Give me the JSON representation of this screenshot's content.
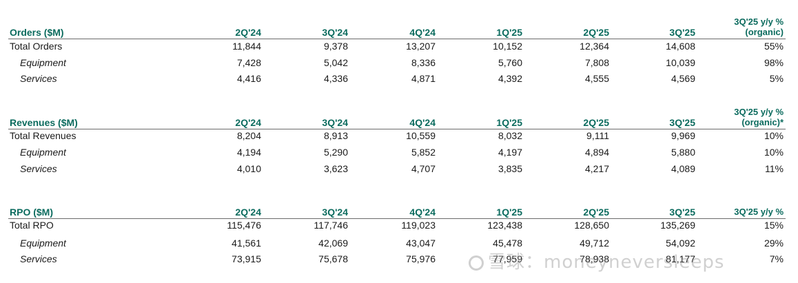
{
  "columns": [
    "2Q'24",
    "3Q'24",
    "4Q'24",
    "1Q'25",
    "2Q'25",
    "3Q'25"
  ],
  "sections": [
    {
      "title": "Orders ($M)",
      "yoy_line1": "3Q'25 y/y %",
      "yoy_line2": "(organic)",
      "rows": [
        {
          "label": "Total Orders",
          "values": [
            "11,844",
            "9,378",
            "13,207",
            "10,152",
            "12,364",
            "14,608"
          ],
          "yoy": "55%"
        },
        {
          "label": "Equipment",
          "values": [
            "7,428",
            "5,042",
            "8,336",
            "5,760",
            "7,808",
            "10,039"
          ],
          "yoy": "98%"
        },
        {
          "label": "Services",
          "values": [
            "4,416",
            "4,336",
            "4,871",
            "4,392",
            "4,555",
            "4,569"
          ],
          "yoy": "5%"
        }
      ]
    },
    {
      "title": "Revenues ($M)",
      "yoy_line1": "3Q'25 y/y %",
      "yoy_line2": "(organic)*",
      "rows": [
        {
          "label": "Total Revenues",
          "values": [
            "8,204",
            "8,913",
            "10,559",
            "8,032",
            "9,111",
            "9,969"
          ],
          "yoy": "10%"
        },
        {
          "label": "Equipment",
          "values": [
            "4,194",
            "5,290",
            "5,852",
            "4,197",
            "4,894",
            "5,880"
          ],
          "yoy": "10%"
        },
        {
          "label": "Services",
          "values": [
            "4,010",
            "3,623",
            "4,707",
            "3,835",
            "4,217",
            "4,089"
          ],
          "yoy": "11%"
        }
      ]
    },
    {
      "title": "RPO ($M)",
      "yoy_line1": "",
      "yoy_line2": "3Q'25 y/y %",
      "rows": [
        {
          "label": "Total RPO",
          "values": [
            "115,476",
            "117,746",
            "119,023",
            "123,438",
            "128,650",
            "135,269"
          ],
          "yoy": "15%"
        },
        {
          "label": "Equipment",
          "values": [
            "41,561",
            "42,069",
            "43,047",
            "45,478",
            "49,712",
            "54,092"
          ],
          "yoy": "29%"
        },
        {
          "label": "Services",
          "values": [
            "73,915",
            "75,678",
            "75,976",
            "77,959",
            "78,938",
            "81,177"
          ],
          "yoy": "7%"
        }
      ]
    }
  ],
  "watermark": "雪球：moneyneversleeps"
}
